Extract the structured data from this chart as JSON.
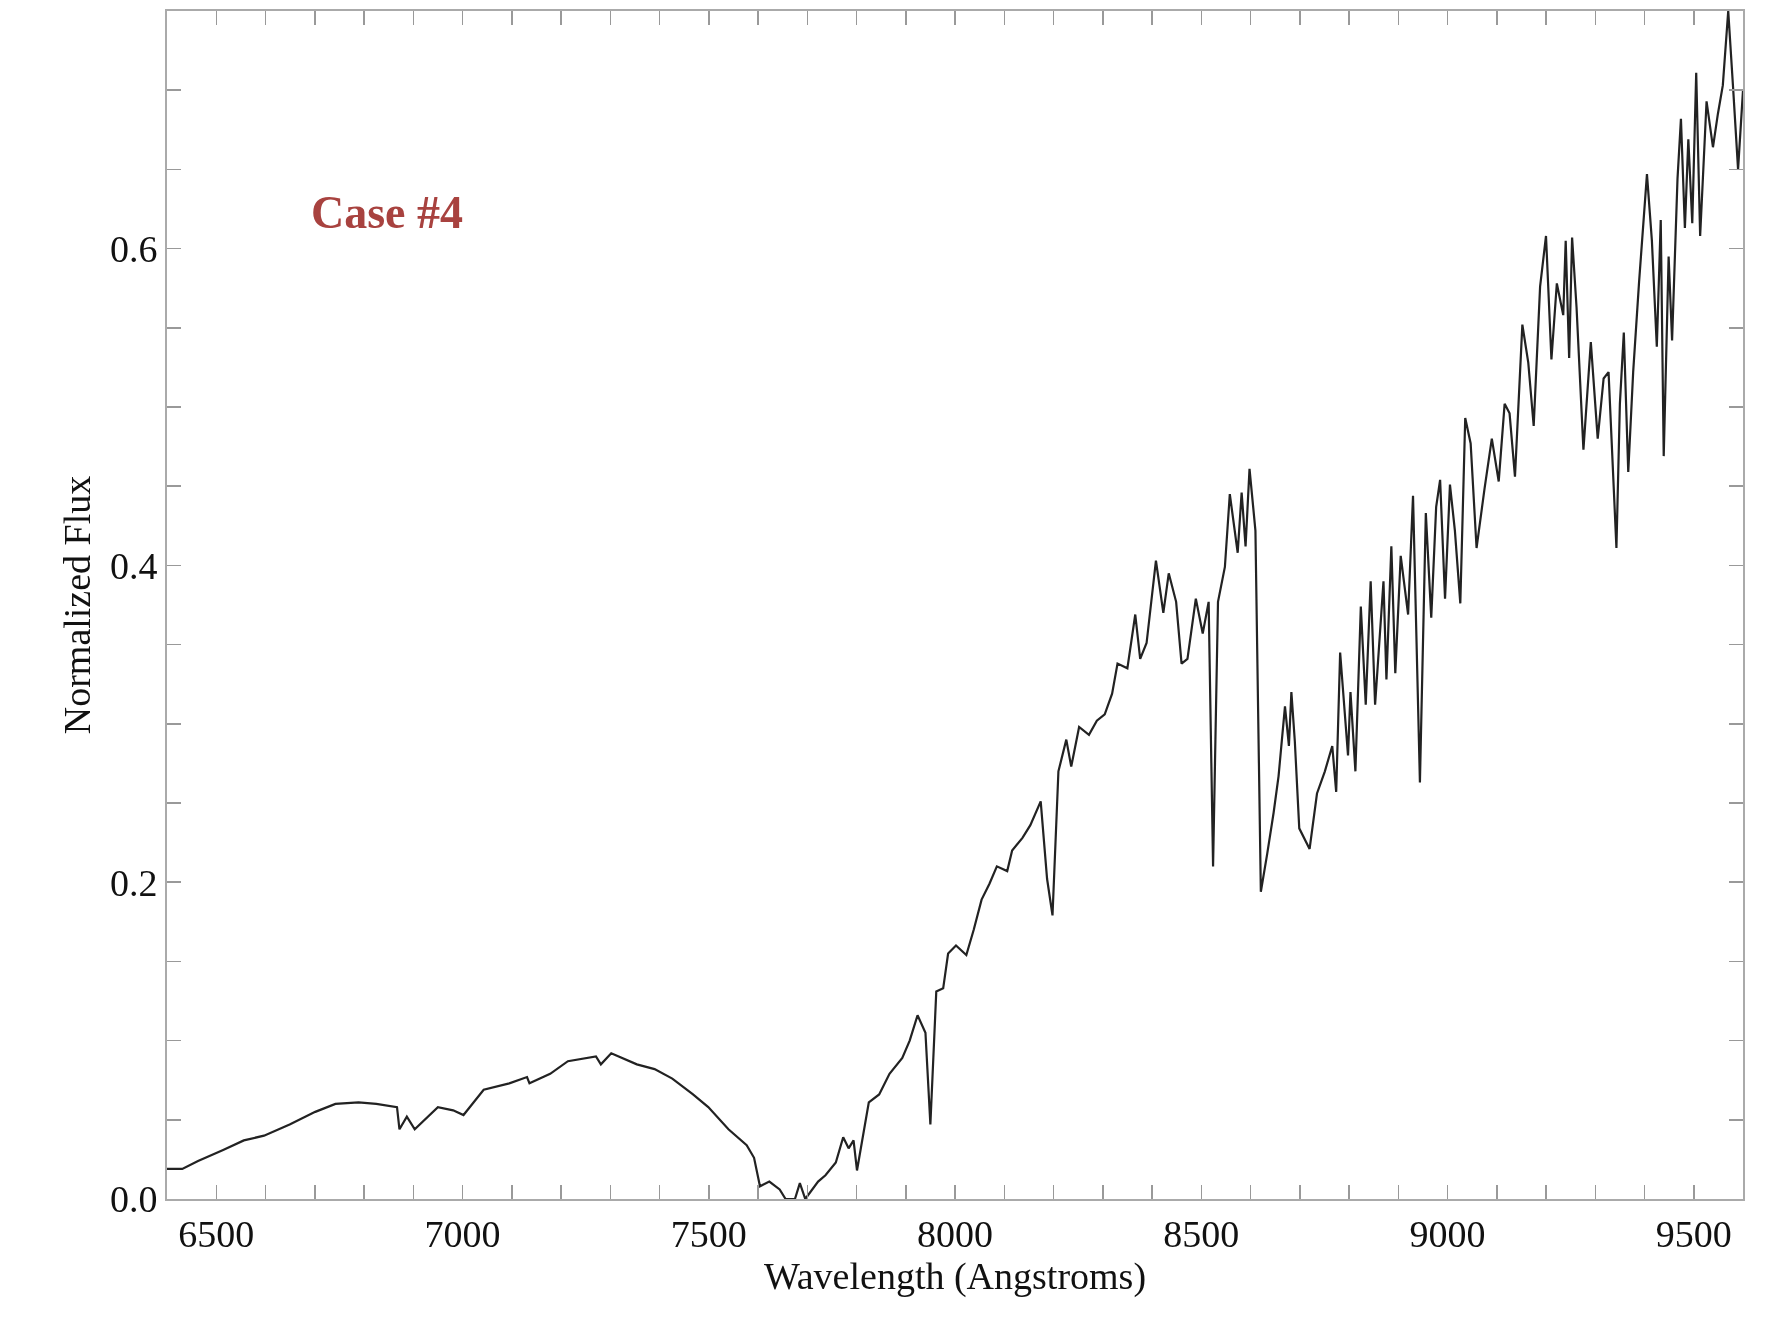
{
  "chart_data": {
    "type": "line",
    "xlabel": "Wavelength (Angstroms)",
    "ylabel": "Normalized Flux",
    "annotations": [
      "Case #4"
    ],
    "grid": false,
    "marker": "none",
    "line_style": "solid",
    "xlim": [
      6400,
      9600
    ],
    "ylim": [
      0,
      0.75
    ],
    "xticks": [
      {
        "value": 6400,
        "label": null
      },
      6500,
      {
        "value": 6600,
        "label": null
      },
      {
        "value": 6700,
        "label": null
      },
      {
        "value": 6800,
        "label": null
      },
      {
        "value": 6900,
        "label": null
      },
      7000,
      {
        "value": 7100,
        "label": null
      },
      {
        "value": 7200,
        "label": null
      },
      {
        "value": 7300,
        "label": null
      },
      {
        "value": 7400,
        "label": null
      },
      7500,
      {
        "value": 7600,
        "label": null
      },
      {
        "value": 7700,
        "label": null
      },
      {
        "value": 7800,
        "label": null
      },
      {
        "value": 7900,
        "label": null
      },
      8000,
      {
        "value": 8100,
        "label": null
      },
      {
        "value": 8200,
        "label": null
      },
      {
        "value": 8300,
        "label": null
      },
      {
        "value": 8400,
        "label": null
      },
      8500,
      {
        "value": 8600,
        "label": null
      },
      {
        "value": 8700,
        "label": null
      },
      {
        "value": 8800,
        "label": null
      },
      {
        "value": 8900,
        "label": null
      },
      9000,
      {
        "value": 9100,
        "label": null
      },
      {
        "value": 9200,
        "label": null
      },
      {
        "value": 9300,
        "label": null
      },
      {
        "value": 9400,
        "label": null
      },
      9500
    ],
    "yticks": [
      {
        "value": 0,
        "label": "0.0"
      },
      {
        "value": 0.05,
        "label": null
      },
      {
        "value": 0.1,
        "label": null
      },
      {
        "value": 0.15,
        "label": null
      },
      {
        "value": 0.2,
        "label": "0.2"
      },
      {
        "value": 0.25,
        "label": null
      },
      {
        "value": 0.3,
        "label": null
      },
      {
        "value": 0.35,
        "label": null
      },
      {
        "value": 0.4,
        "label": "0.4"
      },
      {
        "value": 0.45,
        "label": null
      },
      {
        "value": 0.5,
        "label": null
      },
      {
        "value": 0.55,
        "label": null
      },
      {
        "value": 0.6,
        "label": "0.6"
      },
      {
        "value": 0.65,
        "label": null
      },
      {
        "value": 0.7,
        "label": null
      }
    ],
    "series": [
      {
        "color": "#222222",
        "x": [
          6400,
          6431,
          6463,
          6514,
          6556,
          6597,
          6649,
          6701,
          6742,
          6789,
          6825,
          6867,
          6872,
          6887,
          6903,
          6950,
          6981,
          7002,
          7043,
          7095,
          7131,
          7136,
          7178,
          7214,
          7271,
          7281,
          7302,
          7354,
          7390,
          7426,
          7468,
          7499,
          7540,
          7577,
          7592,
          7604,
          7623,
          7644,
          7656,
          7675,
          7685,
          7696,
          7722,
          7737,
          7758,
          7773,
          7784,
          7794,
          7801,
          7825,
          7846,
          7867,
          7893,
          7908,
          7924,
          7940,
          7950,
          7962,
          7976,
          7986,
          8002,
          8023,
          8038,
          8054,
          8070,
          8085,
          8106,
          8116,
          8137,
          8153,
          8174,
          8187,
          8198,
          8210,
          8226,
          8236,
          8252,
          8272,
          8288,
          8304,
          8319,
          8330,
          8350,
          8366,
          8376,
          8389,
          8408,
          8423,
          8434,
          8449,
          8460,
          8472,
          8489,
          8503,
          8515,
          8524,
          8534,
          8548,
          8558,
          8574,
          8582,
          8590,
          8598,
          8610,
          8621,
          8634,
          8647,
          8657,
          8670,
          8678,
          8683,
          8690,
          8699,
          8720,
          8735,
          8751,
          8766,
          8774,
          8782,
          8798,
          8803,
          8813,
          8824,
          8834,
          8844,
          8853,
          8870,
          8876,
          8886,
          8894,
          8905,
          8920,
          8930,
          8944,
          8956,
          8967,
          8977,
          8985,
          8995,
          9005,
          9015,
          9026,
          9036,
          9047,
          9059,
          9075,
          9090,
          9104,
          9116,
          9126,
          9137,
          9152,
          9164,
          9175,
          9188,
          9200,
          9211,
          9222,
          9235,
          9240,
          9247,
          9253,
          9262,
          9276,
          9291,
          9305,
          9317,
          9327,
          9343,
          9350,
          9358,
          9367,
          9377,
          9389,
          9405,
          9415,
          9425,
          9433,
          9439,
          9449,
          9456,
          9467,
          9474,
          9482,
          9489,
          9497,
          9505,
          9513,
          9526,
          9539,
          9549,
          9559,
          9570,
          9580,
          9590,
          9600
        ],
        "values": [
          0.019,
          0.019,
          0.024,
          0.031,
          0.037,
          0.04,
          0.047,
          0.055,
          0.06,
          0.061,
          0.06,
          0.058,
          0.044,
          0.052,
          0.044,
          0.058,
          0.056,
          0.053,
          0.069,
          0.073,
          0.077,
          0.073,
          0.079,
          0.087,
          0.09,
          0.085,
          0.092,
          0.085,
          0.082,
          0.076,
          0.066,
          0.058,
          0.044,
          0.034,
          0.026,
          0.008,
          0.011,
          0.006,
          0,
          0,
          0.01,
          0,
          0.011,
          0.015,
          0.023,
          0.039,
          0.032,
          0.037,
          0.018,
          0.061,
          0.066,
          0.079,
          0.089,
          0.1,
          0.116,
          0.105,
          0.047,
          0.131,
          0.133,
          0.155,
          0.16,
          0.154,
          0.17,
          0.189,
          0.199,
          0.21,
          0.207,
          0.22,
          0.228,
          0.236,
          0.251,
          0.202,
          0.179,
          0.27,
          0.29,
          0.273,
          0.298,
          0.293,
          0.302,
          0.306,
          0.319,
          0.338,
          0.335,
          0.369,
          0.341,
          0.351,
          0.403,
          0.37,
          0.395,
          0.377,
          0.338,
          0.341,
          0.379,
          0.357,
          0.377,
          0.21,
          0.377,
          0.399,
          0.445,
          0.408,
          0.446,
          0.412,
          0.461,
          0.422,
          0.194,
          0.218,
          0.244,
          0.267,
          0.311,
          0.286,
          0.32,
          0.289,
          0.234,
          0.221,
          0.256,
          0.27,
          0.286,
          0.257,
          0.345,
          0.28,
          0.32,
          0.27,
          0.374,
          0.312,
          0.39,
          0.312,
          0.39,
          0.328,
          0.412,
          0.332,
          0.406,
          0.369,
          0.444,
          0.263,
          0.433,
          0.367,
          0.437,
          0.454,
          0.379,
          0.451,
          0.422,
          0.376,
          0.493,
          0.477,
          0.411,
          0.448,
          0.48,
          0.453,
          0.502,
          0.496,
          0.456,
          0.552,
          0.528,
          0.488,
          0.576,
          0.608,
          0.53,
          0.578,
          0.558,
          0.605,
          0.531,
          0.607,
          0.563,
          0.473,
          0.541,
          0.48,
          0.518,
          0.522,
          0.411,
          0.502,
          0.547,
          0.459,
          0.522,
          0.579,
          0.647,
          0.605,
          0.538,
          0.618,
          0.469,
          0.595,
          0.542,
          0.644,
          0.682,
          0.613,
          0.669,
          0.616,
          0.711,
          0.608,
          0.693,
          0.664,
          0.685,
          0.703,
          0.75,
          0.701,
          0.65,
          0.7
        ]
      }
    ]
  }
}
